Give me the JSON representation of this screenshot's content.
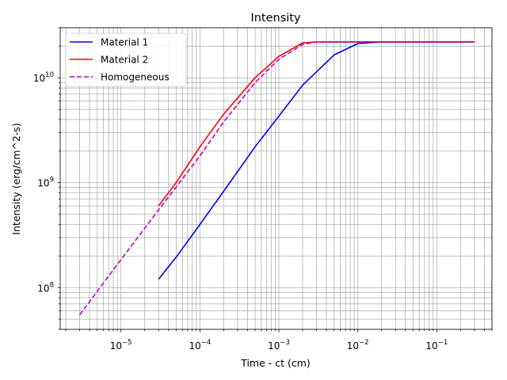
{
  "chart_data": {
    "type": "line",
    "title": "Intensity",
    "xlabel": "Time - ct (cm)",
    "ylabel": "Intensity (erg/cm^2-s)",
    "xscale": "log",
    "yscale": "log",
    "xlim": [
      1.7e-06,
      0.5
    ],
    "ylim": [
      40000000.0,
      30000000000.0
    ],
    "grid": "major and minor",
    "legend_position": "top-left",
    "x_ticks": [
      {
        "base": "10",
        "exp": "−5",
        "value": 1e-05
      },
      {
        "base": "10",
        "exp": "−4",
        "value": 0.0001
      },
      {
        "base": "10",
        "exp": "−3",
        "value": 0.001
      },
      {
        "base": "10",
        "exp": "−2",
        "value": 0.01
      },
      {
        "base": "10",
        "exp": "−1",
        "value": 0.1
      }
    ],
    "y_ticks": [
      {
        "base": "10",
        "exp": "8",
        "value": 100000000.0
      },
      {
        "base": "10",
        "exp": "9",
        "value": 1000000000.0
      },
      {
        "base": "10",
        "exp": "10",
        "value": 10000000000.0
      }
    ],
    "series": [
      {
        "name": "Material 1",
        "color": "#0000ff",
        "style": "solid",
        "x": [
          3e-05,
          5e-05,
          0.0001,
          0.0002,
          0.0005,
          0.001,
          0.002,
          0.005,
          0.01,
          0.02,
          0.05,
          0.1,
          0.3
        ],
        "y": [
          120000000.0,
          195000000.0,
          400000000.0,
          830000000.0,
          2200000000.0,
          4300000000.0,
          8500000000.0,
          16500000000.0,
          21200000000.0,
          22000000000.0,
          22000000000.0,
          22000000000.0,
          22000000000.0
        ]
      },
      {
        "name": "Material 2",
        "color": "#ff0000",
        "style": "solid",
        "x": [
          3e-05,
          5e-05,
          0.0001,
          0.0002,
          0.0005,
          0.001,
          0.002,
          0.003,
          0.005,
          0.01,
          0.1,
          0.3
        ],
        "y": [
          600000000.0,
          1000000000.0,
          2200000000.0,
          4500000000.0,
          10000000000.0,
          16000000000.0,
          21500000000.0,
          22000000000.0,
          22000000000.0,
          22000000000.0,
          22000000000.0,
          22000000000.0
        ]
      },
      {
        "name": "Homogeneous",
        "color": "#bf00bf",
        "style": "dashed",
        "x": [
          3e-06,
          1e-05,
          3e-05,
          0.0001,
          0.0002,
          0.0005,
          0.001,
          0.002,
          0.003,
          0.005,
          0.01,
          0.1,
          0.3
        ],
        "y": [
          55000000.0,
          185000000.0,
          550000000.0,
          1800000000.0,
          3800000000.0,
          9000000000.0,
          15000000000.0,
          20800000000.0,
          22000000000.0,
          22000000000.0,
          22000000000.0,
          22000000000.0,
          22000000000.0
        ]
      }
    ]
  }
}
